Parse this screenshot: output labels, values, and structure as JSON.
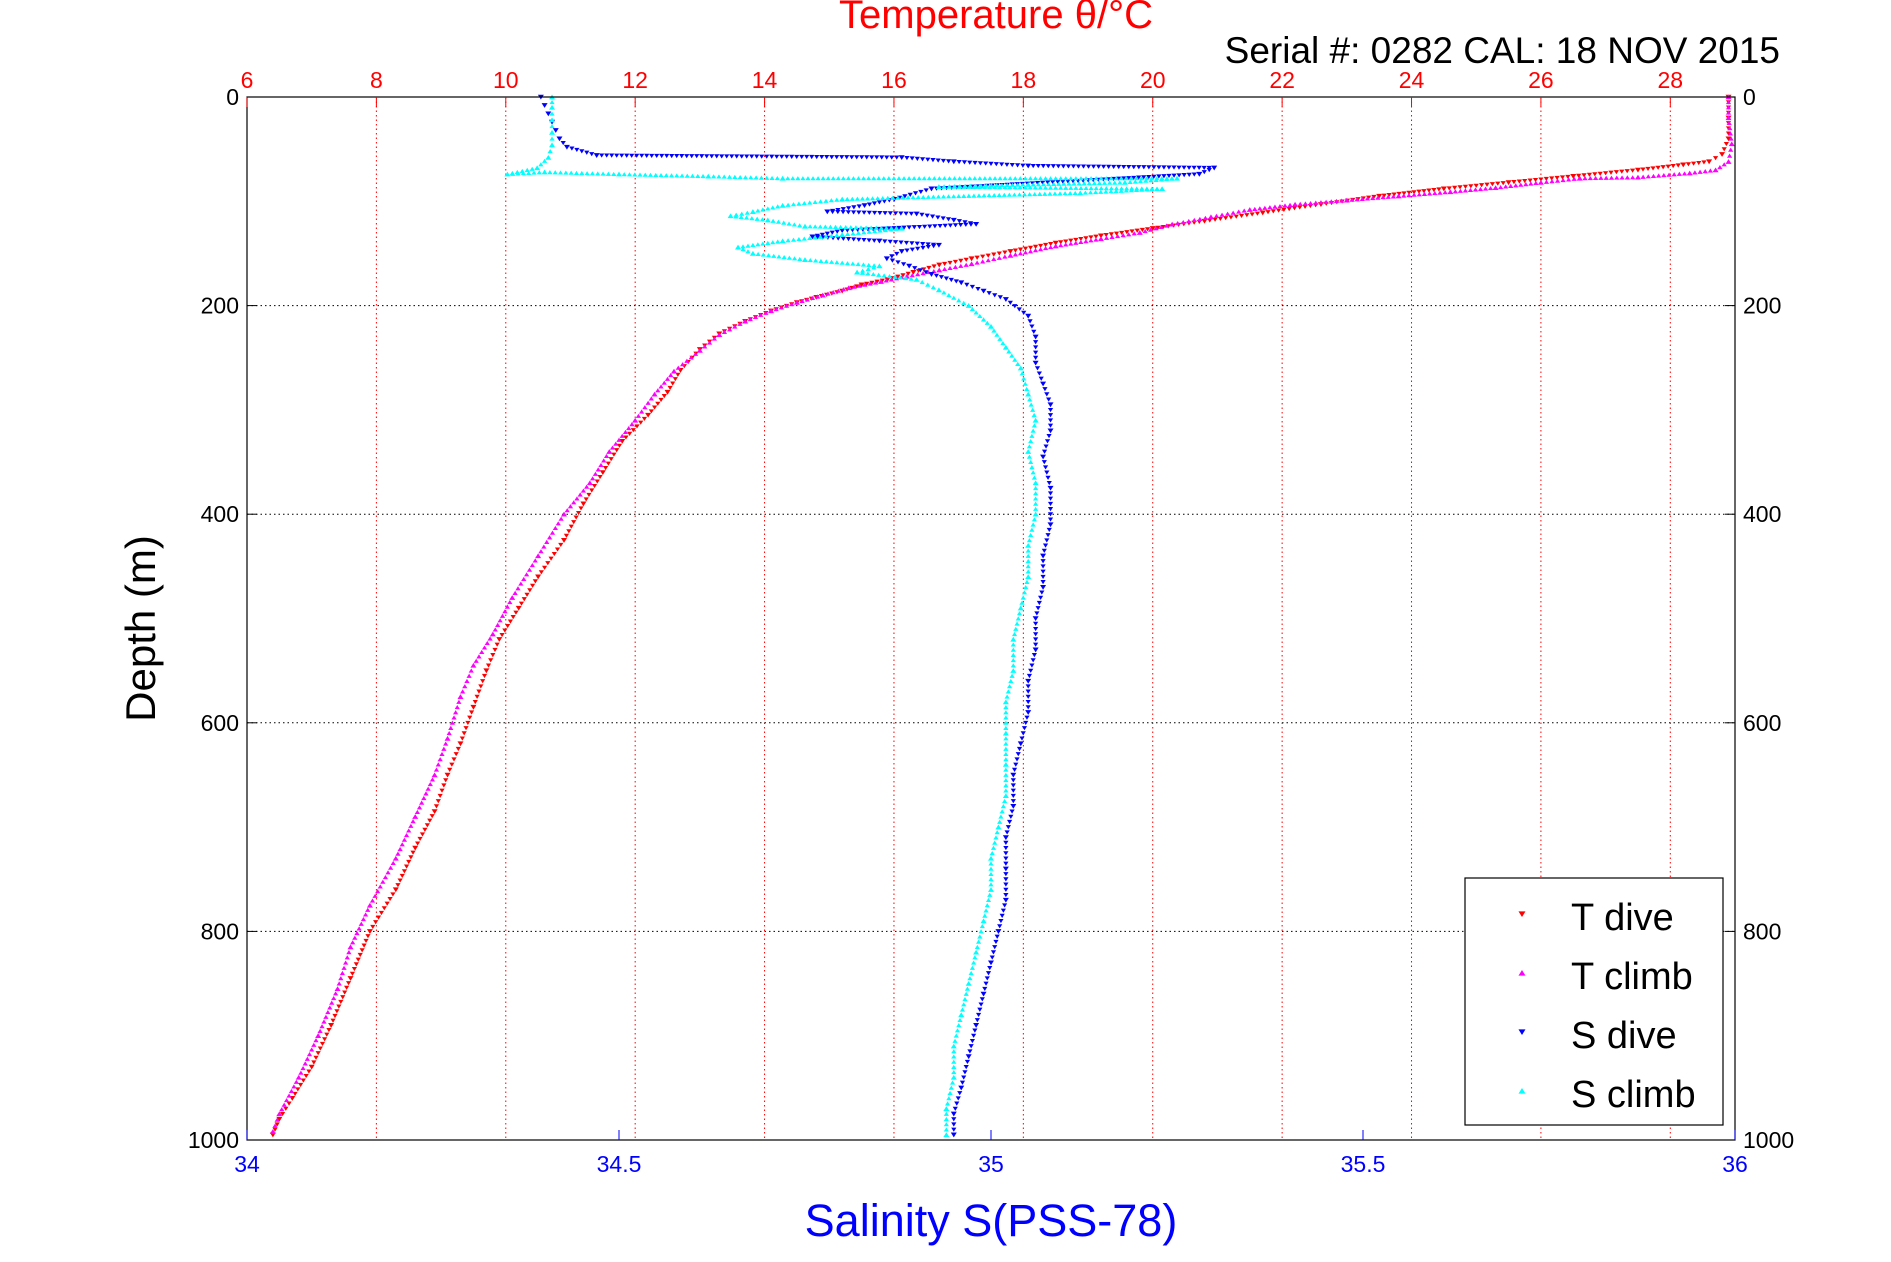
{
  "chart_data": {
    "type": "scatter",
    "title": "Temperature θ/°C",
    "subtitle": "Serial #: 0282  CAL: 18 NOV 2015",
    "xlabel": "Salinity S(PSS-78)",
    "ylabel": "Depth (m)",
    "x_salinity": {
      "lim": [
        34,
        36
      ],
      "ticks": [
        "34",
        "34.5",
        "35",
        "35.5",
        "36"
      ],
      "color": "#0000ff"
    },
    "x_temperature": {
      "lim": [
        6,
        29
      ],
      "ticks": [
        "6",
        "8",
        "10",
        "12",
        "14",
        "16",
        "18",
        "20",
        "22",
        "24",
        "26",
        "28"
      ],
      "color": "#ff0000"
    },
    "y_depth": {
      "lim": [
        0,
        1000
      ],
      "reversed": true,
      "ticks": [
        "0",
        "200",
        "400",
        "600",
        "800",
        "1000"
      ]
    },
    "grid": true,
    "legend": {
      "position": "bottom-right",
      "entries": [
        {
          "label": "T dive",
          "color": "#ff0000",
          "marker": "down-triangle"
        },
        {
          "label": "T climb",
          "color": "#ff00ff",
          "marker": "up-triangle"
        },
        {
          "label": "S dive",
          "color": "#0000ff",
          "marker": "down-triangle"
        },
        {
          "label": "S climb",
          "color": "#00ffff",
          "marker": "up-triangle"
        }
      ]
    },
    "series": [
      {
        "name": "T dive",
        "axis": "temperature",
        "color": "#ff0000",
        "marker": "down-triangle",
        "points": [
          [
            28.9,
            0
          ],
          [
            28.9,
            20
          ],
          [
            28.9,
            40
          ],
          [
            28.8,
            55
          ],
          [
            28.6,
            62
          ],
          [
            28.2,
            65
          ],
          [
            27.5,
            70
          ],
          [
            26.5,
            76
          ],
          [
            25.5,
            82
          ],
          [
            24.5,
            88
          ],
          [
            23.5,
            95
          ],
          [
            22.6,
            103
          ],
          [
            21.7,
            111
          ],
          [
            20.8,
            119
          ],
          [
            20.0,
            126
          ],
          [
            19.2,
            133
          ],
          [
            18.5,
            140
          ],
          [
            17.8,
            148
          ],
          [
            17.2,
            155
          ],
          [
            16.7,
            161
          ],
          [
            16.3,
            168
          ],
          [
            15.9,
            175
          ],
          [
            15.5,
            180
          ],
          [
            15.2,
            186
          ],
          [
            14.8,
            192
          ],
          [
            14.5,
            197
          ],
          [
            14.1,
            205
          ],
          [
            13.7,
            215
          ],
          [
            13.3,
            227
          ],
          [
            13.0,
            242
          ],
          [
            12.7,
            262
          ],
          [
            12.5,
            283
          ],
          [
            12.2,
            305
          ],
          [
            11.8,
            330
          ],
          [
            11.5,
            360
          ],
          [
            11.2,
            390
          ],
          [
            10.9,
            425
          ],
          [
            10.5,
            460
          ],
          [
            10.2,
            490
          ],
          [
            9.9,
            520
          ],
          [
            9.7,
            550
          ],
          [
            9.5,
            585
          ],
          [
            9.3,
            620
          ],
          [
            9.1,
            650
          ],
          [
            8.9,
            685
          ],
          [
            8.6,
            720
          ],
          [
            8.3,
            760
          ],
          [
            7.9,
            800
          ],
          [
            7.6,
            845
          ],
          [
            7.3,
            890
          ],
          [
            7.0,
            930
          ],
          [
            6.7,
            960
          ],
          [
            6.5,
            980
          ],
          [
            6.4,
            995
          ]
        ]
      },
      {
        "name": "T climb",
        "axis": "temperature",
        "color": "#ff00ff",
        "marker": "up-triangle",
        "points": [
          [
            28.9,
            0
          ],
          [
            28.9,
            20
          ],
          [
            28.95,
            45
          ],
          [
            28.9,
            62
          ],
          [
            28.7,
            70
          ],
          [
            28.3,
            73
          ],
          [
            27.5,
            77
          ],
          [
            26.6,
            78
          ],
          [
            26.0,
            82
          ],
          [
            25.3,
            87
          ],
          [
            24.6,
            91
          ],
          [
            23.8,
            95
          ],
          [
            23.0,
            99
          ],
          [
            22.2,
            103
          ],
          [
            21.5,
            108
          ],
          [
            20.9,
            115
          ],
          [
            20.3,
            122
          ],
          [
            19.8,
            130
          ],
          [
            19.2,
            136
          ],
          [
            18.5,
            143
          ],
          [
            17.8,
            152
          ],
          [
            17.2,
            160
          ],
          [
            16.7,
            166
          ],
          [
            16.2,
            172
          ],
          [
            15.8,
            177
          ],
          [
            15.3,
            183
          ],
          [
            14.9,
            190
          ],
          [
            14.5,
            197
          ],
          [
            14.1,
            205
          ],
          [
            13.7,
            215
          ],
          [
            13.3,
            228
          ],
          [
            13.0,
            243
          ],
          [
            12.6,
            263
          ],
          [
            12.3,
            285
          ],
          [
            12.0,
            310
          ],
          [
            11.6,
            340
          ],
          [
            11.3,
            370
          ],
          [
            10.9,
            400
          ],
          [
            10.5,
            440
          ],
          [
            10.1,
            480
          ],
          [
            9.8,
            515
          ],
          [
            9.5,
            545
          ],
          [
            9.3,
            575
          ],
          [
            9.1,
            615
          ],
          [
            8.9,
            650
          ],
          [
            8.6,
            690
          ],
          [
            8.3,
            730
          ],
          [
            7.9,
            775
          ],
          [
            7.6,
            815
          ],
          [
            7.4,
            855
          ],
          [
            7.1,
            900
          ],
          [
            6.8,
            940
          ],
          [
            6.5,
            975
          ],
          [
            6.4,
            992
          ]
        ]
      },
      {
        "name": "S dive",
        "axis": "salinity",
        "color": "#0000ff",
        "marker": "down-triangle",
        "points": [
          [
            34.395,
            0
          ],
          [
            34.4,
            8
          ],
          [
            34.405,
            16
          ],
          [
            34.41,
            24
          ],
          [
            34.415,
            32
          ],
          [
            34.42,
            40
          ],
          [
            34.43,
            48
          ],
          [
            34.47,
            56
          ],
          [
            34.88,
            58
          ],
          [
            34.95,
            62
          ],
          [
            35.05,
            66
          ],
          [
            35.3,
            68
          ],
          [
            35.28,
            74
          ],
          [
            34.92,
            88
          ],
          [
            34.87,
            98
          ],
          [
            34.83,
            104
          ],
          [
            34.78,
            110
          ],
          [
            34.9,
            112
          ],
          [
            34.95,
            118
          ],
          [
            34.98,
            122
          ],
          [
            34.8,
            128
          ],
          [
            34.76,
            134
          ],
          [
            34.85,
            138
          ],
          [
            34.93,
            142
          ],
          [
            34.88,
            148
          ],
          [
            34.86,
            155
          ],
          [
            34.89,
            162
          ],
          [
            34.92,
            170
          ],
          [
            34.96,
            178
          ],
          [
            34.99,
            186
          ],
          [
            35.02,
            194
          ],
          [
            35.05,
            210
          ],
          [
            35.06,
            230
          ],
          [
            35.06,
            255
          ],
          [
            35.07,
            275
          ],
          [
            35.08,
            295
          ],
          [
            35.08,
            320
          ],
          [
            35.07,
            345
          ],
          [
            35.08,
            375
          ],
          [
            35.08,
            410
          ],
          [
            35.07,
            440
          ],
          [
            35.07,
            470
          ],
          [
            35.06,
            500
          ],
          [
            35.06,
            530
          ],
          [
            35.05,
            560
          ],
          [
            35.05,
            590
          ],
          [
            35.04,
            620
          ],
          [
            35.03,
            650
          ],
          [
            35.03,
            680
          ],
          [
            35.02,
            710
          ],
          [
            35.02,
            740
          ],
          [
            35.02,
            770
          ],
          [
            35.01,
            800
          ],
          [
            35.0,
            830
          ],
          [
            34.99,
            860
          ],
          [
            34.98,
            890
          ],
          [
            34.97,
            920
          ],
          [
            34.96,
            950
          ],
          [
            34.95,
            975
          ],
          [
            34.95,
            995
          ]
        ]
      },
      {
        "name": "S climb",
        "axis": "salinity",
        "color": "#00ffff",
        "marker": "up-triangle",
        "points": [
          [
            34.41,
            0
          ],
          [
            34.41,
            10
          ],
          [
            34.41,
            22
          ],
          [
            34.41,
            34
          ],
          [
            34.41,
            46
          ],
          [
            34.405,
            58
          ],
          [
            34.39,
            68
          ],
          [
            34.35,
            74
          ],
          [
            34.4,
            72
          ],
          [
            34.5,
            74
          ],
          [
            34.62,
            76
          ],
          [
            34.72,
            78
          ],
          [
            35.25,
            78
          ],
          [
            35.18,
            82
          ],
          [
            35.05,
            84
          ],
          [
            34.93,
            86
          ],
          [
            35.23,
            88
          ],
          [
            35.12,
            92
          ],
          [
            34.8,
            98
          ],
          [
            34.72,
            104
          ],
          [
            34.68,
            110
          ],
          [
            34.65,
            114
          ],
          [
            34.7,
            118
          ],
          [
            34.75,
            124
          ],
          [
            34.88,
            126
          ],
          [
            34.8,
            132
          ],
          [
            34.72,
            138
          ],
          [
            34.66,
            144
          ],
          [
            34.68,
            150
          ],
          [
            34.75,
            156
          ],
          [
            34.85,
            162
          ],
          [
            34.82,
            168
          ],
          [
            34.9,
            175
          ],
          [
            34.93,
            185
          ],
          [
            34.97,
            200
          ],
          [
            35.0,
            220
          ],
          [
            35.02,
            240
          ],
          [
            35.04,
            260
          ],
          [
            35.05,
            285
          ],
          [
            35.06,
            310
          ],
          [
            35.05,
            340
          ],
          [
            35.06,
            370
          ],
          [
            35.06,
            400
          ],
          [
            35.05,
            430
          ],
          [
            35.05,
            460
          ],
          [
            35.04,
            490
          ],
          [
            35.03,
            520
          ],
          [
            35.03,
            550
          ],
          [
            35.02,
            580
          ],
          [
            35.02,
            610
          ],
          [
            35.02,
            640
          ],
          [
            35.02,
            670
          ],
          [
            35.01,
            700
          ],
          [
            35.0,
            730
          ],
          [
            35.0,
            760
          ],
          [
            34.99,
            790
          ],
          [
            34.98,
            820
          ],
          [
            34.97,
            850
          ],
          [
            34.96,
            880
          ],
          [
            34.95,
            910
          ],
          [
            34.95,
            940
          ],
          [
            34.94,
            970
          ],
          [
            34.94,
            995
          ]
        ]
      }
    ]
  }
}
